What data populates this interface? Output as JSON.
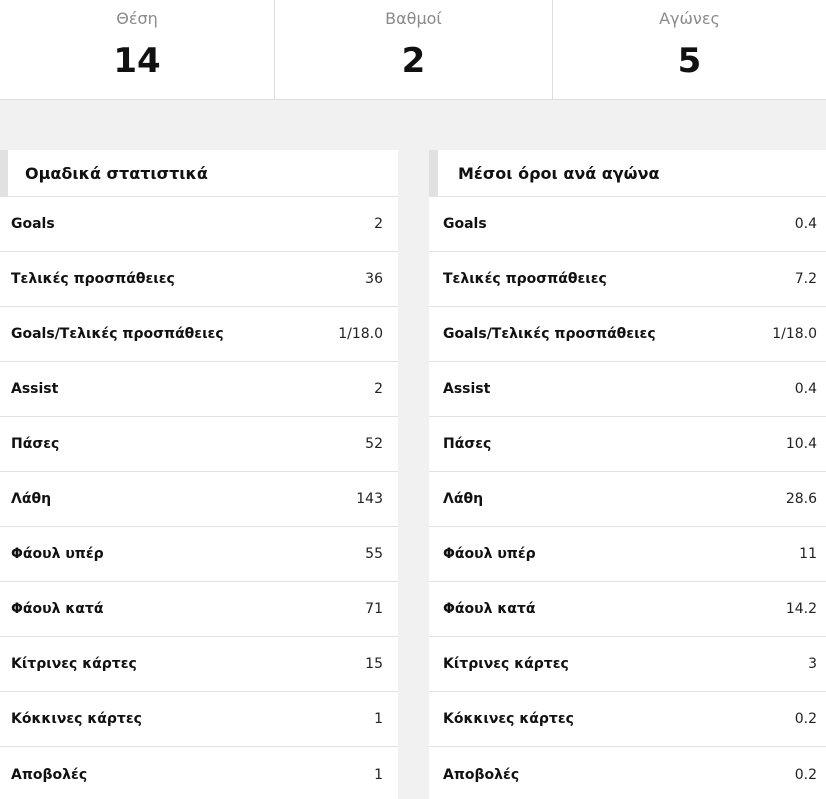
{
  "summary": [
    {
      "label": "Θέση",
      "value": "14"
    },
    {
      "label": "Βαθμοί",
      "value": "2"
    },
    {
      "label": "Αγώνες",
      "value": "5"
    }
  ],
  "team_stats": {
    "title": "Ομαδικά στατιστικά",
    "rows": [
      {
        "label": "Goals",
        "value": "2"
      },
      {
        "label": "Τελικές προσπάθειες",
        "value": "36"
      },
      {
        "label": "Goals/Τελικές προσπάθειες",
        "value": "1/18.0"
      },
      {
        "label": "Assist",
        "value": "2"
      },
      {
        "label": "Πάσες",
        "value": "52"
      },
      {
        "label": "Λάθη",
        "value": "143"
      },
      {
        "label": "Φάουλ υπέρ",
        "value": "55"
      },
      {
        "label": "Φάουλ κατά",
        "value": "71"
      },
      {
        "label": "Κίτρινες κάρτες",
        "value": "15"
      },
      {
        "label": "Κόκκινες κάρτες",
        "value": "1"
      },
      {
        "label": "Αποβολές",
        "value": "1"
      }
    ]
  },
  "per_game": {
    "title": "Μέσοι όροι ανά αγώνα",
    "rows": [
      {
        "label": "Goals",
        "value": "0.4"
      },
      {
        "label": "Τελικές προσπάθειες",
        "value": "7.2"
      },
      {
        "label": "Goals/Τελικές προσπάθειες",
        "value": "1/18.0"
      },
      {
        "label": "Assist",
        "value": "0.4"
      },
      {
        "label": "Πάσες",
        "value": "10.4"
      },
      {
        "label": "Λάθη",
        "value": "28.6"
      },
      {
        "label": "Φάουλ υπέρ",
        "value": "11"
      },
      {
        "label": "Φάουλ κατά",
        "value": "14.2"
      },
      {
        "label": "Κίτρινες κάρτες",
        "value": "3"
      },
      {
        "label": "Κόκκινες κάρτες",
        "value": "0.2"
      },
      {
        "label": "Αποβολές",
        "value": "0.2"
      }
    ]
  }
}
